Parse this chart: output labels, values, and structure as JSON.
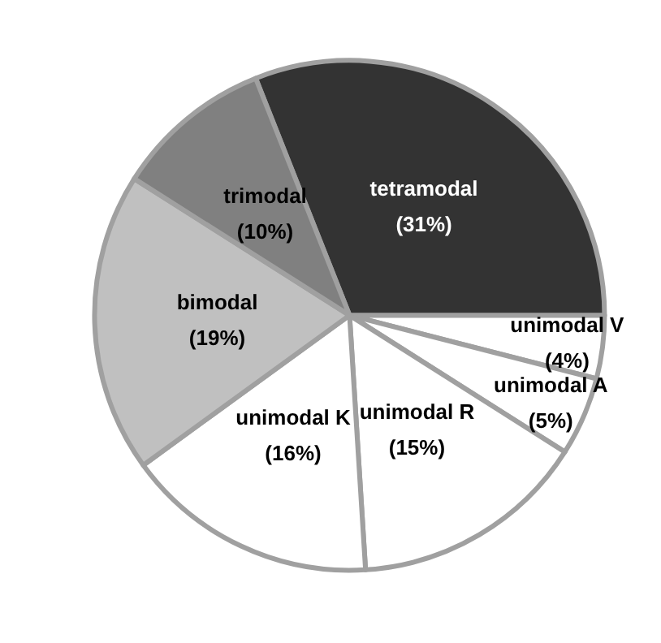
{
  "chart_data": {
    "type": "pie",
    "categories": [
      "tetramodal",
      "unimodal V",
      "unimodal A",
      "unimodal R",
      "unimodal K",
      "bimodal",
      "trimodal"
    ],
    "values": [
      31,
      4,
      5,
      15,
      16,
      19,
      10
    ],
    "value_labels": [
      "(31%)",
      "(4%)",
      "(5%)",
      "(15%)",
      "(16%)",
      "(19%)",
      "(10%)"
    ],
    "colors": [
      "#333333",
      "#ffffff",
      "#ffffff",
      "#ffffff",
      "#ffffff",
      "#c0c0c0",
      "#808080"
    ],
    "legend": false
  }
}
